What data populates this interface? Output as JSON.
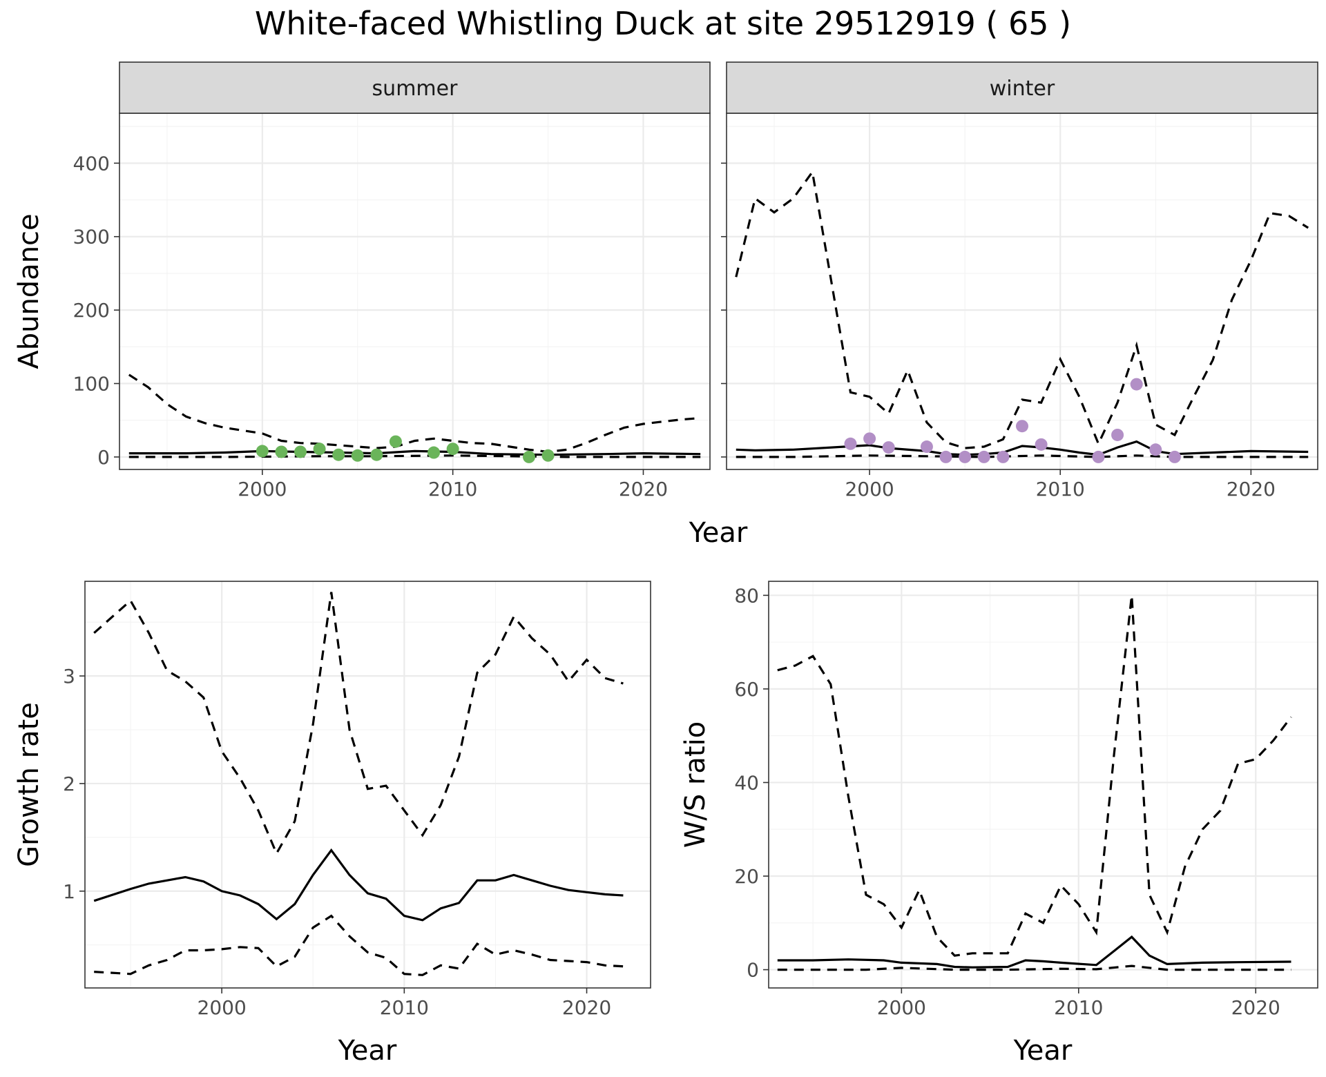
{
  "title": "White-faced Whistling Duck at site 29512919 ( 65 )",
  "chart_data": [
    {
      "type": "line",
      "panel": "abundance",
      "ylabel": "Abundance",
      "xlabel": "Year",
      "xlim": [
        1992.5,
        2023.5
      ],
      "ylim": [
        -17,
        468
      ],
      "xticks": [
        2000,
        2010,
        2020
      ],
      "yticks": [
        0,
        100,
        200,
        300,
        400
      ],
      "facets": [
        {
          "label": "summer",
          "point_color": "#6ab45a",
          "estimate": [
            [
              1993,
              5
            ],
            [
              1996,
              5
            ],
            [
              1998,
              6
            ],
            [
              2000,
              8
            ],
            [
              2002,
              7
            ],
            [
              2004,
              6
            ],
            [
              2006,
              5
            ],
            [
              2008,
              8
            ],
            [
              2010,
              7
            ],
            [
              2012,
              4
            ],
            [
              2015,
              3
            ],
            [
              2018,
              4
            ],
            [
              2020,
              5
            ],
            [
              2023,
              4
            ]
          ],
          "upper": [
            [
              1993,
              112
            ],
            [
              1994,
              95
            ],
            [
              1995,
              72
            ],
            [
              1996,
              55
            ],
            [
              1997,
              46
            ],
            [
              1998,
              40
            ],
            [
              2000,
              32
            ],
            [
              2001,
              22
            ],
            [
              2002,
              19
            ],
            [
              2003,
              18
            ],
            [
              2004,
              16
            ],
            [
              2005,
              14
            ],
            [
              2006,
              12
            ],
            [
              2007,
              14
            ],
            [
              2008,
              22
            ],
            [
              2009,
              25
            ],
            [
              2010,
              22
            ],
            [
              2011,
              19
            ],
            [
              2012,
              18
            ],
            [
              2013,
              14
            ],
            [
              2014,
              10
            ],
            [
              2015,
              7
            ],
            [
              2016,
              10
            ],
            [
              2017,
              19
            ],
            [
              2018,
              30
            ],
            [
              2019,
              40
            ],
            [
              2020,
              45
            ],
            [
              2021,
              48
            ],
            [
              2022,
              51
            ],
            [
              2023,
              53
            ]
          ],
          "lower": [
            [
              1993,
              0
            ],
            [
              1998,
              0
            ],
            [
              2003,
              1
            ],
            [
              2006,
              1
            ],
            [
              2010,
              2
            ],
            [
              2013,
              1
            ],
            [
              2016,
              0
            ],
            [
              2020,
              0
            ],
            [
              2023,
              0
            ]
          ],
          "observed": [
            [
              2000,
              8
            ],
            [
              2001,
              7
            ],
            [
              2002,
              7
            ],
            [
              2003,
              11
            ],
            [
              2004,
              3
            ],
            [
              2005,
              2
            ],
            [
              2006,
              3
            ],
            [
              2007,
              21
            ],
            [
              2009,
              6
            ],
            [
              2010,
              11
            ],
            [
              2014,
              0
            ],
            [
              2015,
              2
            ]
          ]
        },
        {
          "label": "winter",
          "point_color": "#b28fc6",
          "estimate": [
            [
              1993,
              10
            ],
            [
              1994,
              9
            ],
            [
              1996,
              10
            ],
            [
              1998,
              13
            ],
            [
              2000,
              16
            ],
            [
              2001,
              12
            ],
            [
              2003,
              8
            ],
            [
              2004,
              4
            ],
            [
              2005,
              3
            ],
            [
              2006,
              4
            ],
            [
              2007,
              6
            ],
            [
              2008,
              15
            ],
            [
              2009,
              13
            ],
            [
              2010,
              10
            ],
            [
              2011,
              6
            ],
            [
              2012,
              3
            ],
            [
              2013,
              13
            ],
            [
              2014,
              21
            ],
            [
              2015,
              8
            ],
            [
              2016,
              4
            ],
            [
              2018,
              6
            ],
            [
              2020,
              8
            ],
            [
              2023,
              7
            ]
          ],
          "upper": [
            [
              1993,
              245
            ],
            [
              1994,
              352
            ],
            [
              1995,
              333
            ],
            [
              1996,
              352
            ],
            [
              1997,
              388
            ],
            [
              1999,
              88
            ],
            [
              2000,
              82
            ],
            [
              2001,
              59
            ],
            [
              2002,
              118
            ],
            [
              2003,
              47
            ],
            [
              2004,
              20
            ],
            [
              2005,
              12
            ],
            [
              2006,
              14
            ],
            [
              2007,
              24
            ],
            [
              2008,
              78
            ],
            [
              2009,
              74
            ],
            [
              2010,
              133
            ],
            [
              2011,
              82
            ],
            [
              2012,
              18
            ],
            [
              2013,
              74
            ],
            [
              2014,
              152
            ],
            [
              2015,
              44
            ],
            [
              2016,
              30
            ],
            [
              2017,
              82
            ],
            [
              2018,
              132
            ],
            [
              2019,
              214
            ],
            [
              2020,
              268
            ],
            [
              2021,
              332
            ],
            [
              2022,
              328
            ],
            [
              2023,
              312
            ]
          ],
          "lower": [
            [
              1993,
              0
            ],
            [
              1996,
              0
            ],
            [
              2000,
              2
            ],
            [
              2003,
              1
            ],
            [
              2006,
              0
            ],
            [
              2009,
              2
            ],
            [
              2012,
              0
            ],
            [
              2014,
              2
            ],
            [
              2016,
              0
            ],
            [
              2020,
              0
            ],
            [
              2023,
              0
            ]
          ],
          "observed": [
            [
              1999,
              18
            ],
            [
              2000,
              25
            ],
            [
              2001,
              13
            ],
            [
              2003,
              14
            ],
            [
              2004,
              0
            ],
            [
              2005,
              0
            ],
            [
              2006,
              0
            ],
            [
              2007,
              0
            ],
            [
              2008,
              42
            ],
            [
              2009,
              17
            ],
            [
              2012,
              0
            ],
            [
              2013,
              30
            ],
            [
              2014,
              99
            ],
            [
              2015,
              10
            ],
            [
              2016,
              0
            ]
          ]
        }
      ]
    },
    {
      "type": "line",
      "panel": "growth",
      "ylabel": "Growth rate",
      "xlabel": "Year",
      "xlim": [
        1992.5,
        2023.5
      ],
      "ylim": [
        0.1,
        3.88
      ],
      "xticks": [
        2000,
        2010,
        2020
      ],
      "yticks": [
        1,
        2,
        3
      ],
      "estimate": [
        [
          1993,
          0.91
        ],
        [
          1995,
          1.02
        ],
        [
          1996,
          1.07
        ],
        [
          1998,
          1.13
        ],
        [
          1999,
          1.09
        ],
        [
          2000,
          1.0
        ],
        [
          2001,
          0.96
        ],
        [
          2002,
          0.88
        ],
        [
          2003,
          0.74
        ],
        [
          2004,
          0.88
        ],
        [
          2005,
          1.15
        ],
        [
          2006,
          1.38
        ],
        [
          2007,
          1.15
        ],
        [
          2008,
          0.98
        ],
        [
          2009,
          0.93
        ],
        [
          2010,
          0.77
        ],
        [
          2011,
          0.73
        ],
        [
          2012,
          0.84
        ],
        [
          2013,
          0.89
        ],
        [
          2014,
          1.1
        ],
        [
          2015,
          1.1
        ],
        [
          2016,
          1.15
        ],
        [
          2017,
          1.1
        ],
        [
          2018,
          1.05
        ],
        [
          2019,
          1.01
        ],
        [
          2020,
          0.99
        ],
        [
          2021,
          0.97
        ],
        [
          2022,
          0.96
        ]
      ],
      "upper": [
        [
          1993,
          3.4
        ],
        [
          1995,
          3.7
        ],
        [
          1996,
          3.4
        ],
        [
          1997,
          3.05
        ],
        [
          1998,
          2.95
        ],
        [
          1999,
          2.8
        ],
        [
          2000,
          2.3
        ],
        [
          2001,
          2.05
        ],
        [
          2002,
          1.75
        ],
        [
          2003,
          1.35
        ],
        [
          2004,
          1.65
        ],
        [
          2005,
          2.55
        ],
        [
          2006,
          3.78
        ],
        [
          2007,
          2.5
        ],
        [
          2008,
          1.95
        ],
        [
          2009,
          1.98
        ],
        [
          2010,
          1.75
        ],
        [
          2011,
          1.52
        ],
        [
          2012,
          1.8
        ],
        [
          2013,
          2.25
        ],
        [
          2014,
          3.03
        ],
        [
          2015,
          3.2
        ],
        [
          2016,
          3.55
        ],
        [
          2017,
          3.35
        ],
        [
          2018,
          3.2
        ],
        [
          2019,
          2.95
        ],
        [
          2020,
          3.15
        ],
        [
          2021,
          2.98
        ],
        [
          2022,
          2.93
        ]
      ],
      "lower": [
        [
          1993,
          0.25
        ],
        [
          1995,
          0.23
        ],
        [
          1996,
          0.31
        ],
        [
          1997,
          0.36
        ],
        [
          1998,
          0.45
        ],
        [
          1999,
          0.45
        ],
        [
          2000,
          0.46
        ],
        [
          2001,
          0.48
        ],
        [
          2002,
          0.47
        ],
        [
          2003,
          0.3
        ],
        [
          2004,
          0.39
        ],
        [
          2005,
          0.66
        ],
        [
          2006,
          0.77
        ],
        [
          2007,
          0.58
        ],
        [
          2008,
          0.43
        ],
        [
          2009,
          0.38
        ],
        [
          2010,
          0.23
        ],
        [
          2011,
          0.22
        ],
        [
          2012,
          0.31
        ],
        [
          2013,
          0.28
        ],
        [
          2014,
          0.51
        ],
        [
          2015,
          0.41
        ],
        [
          2016,
          0.45
        ],
        [
          2017,
          0.41
        ],
        [
          2018,
          0.36
        ],
        [
          2019,
          0.35
        ],
        [
          2020,
          0.34
        ],
        [
          2021,
          0.31
        ],
        [
          2022,
          0.3
        ]
      ]
    },
    {
      "type": "line",
      "panel": "ratio",
      "ylabel": "W/S ratio",
      "xlabel": "Year",
      "xlim": [
        1992.5,
        2023.5
      ],
      "ylim": [
        -3.9,
        83
      ],
      "xticks": [
        2000,
        2010,
        2020
      ],
      "yticks": [
        0,
        20,
        40,
        60,
        80
      ],
      "estimate": [
        [
          1993,
          2
        ],
        [
          1995,
          2
        ],
        [
          1997,
          2.2
        ],
        [
          1999,
          2
        ],
        [
          2000,
          1.5
        ],
        [
          2002,
          1.2
        ],
        [
          2003,
          0.6
        ],
        [
          2004,
          0.5
        ],
        [
          2006,
          0.6
        ],
        [
          2007,
          2
        ],
        [
          2008,
          1.8
        ],
        [
          2009,
          1.5
        ],
        [
          2011,
          1
        ],
        [
          2012,
          4
        ],
        [
          2013,
          7
        ],
        [
          2014,
          3
        ],
        [
          2015,
          1.2
        ],
        [
          2017,
          1.5
        ],
        [
          2019,
          1.6
        ],
        [
          2022,
          1.7
        ]
      ],
      "upper": [
        [
          1993,
          64
        ],
        [
          1994,
          65
        ],
        [
          1995,
          67
        ],
        [
          1996,
          61
        ],
        [
          1997,
          37
        ],
        [
          1998,
          16
        ],
        [
          1999,
          14
        ],
        [
          2000,
          9
        ],
        [
          2001,
          17
        ],
        [
          2002,
          7
        ],
        [
          2003,
          3
        ],
        [
          2004,
          3.5
        ],
        [
          2005,
          3.5
        ],
        [
          2006,
          3.5
        ],
        [
          2007,
          12
        ],
        [
          2008,
          10
        ],
        [
          2009,
          18
        ],
        [
          2010,
          14
        ],
        [
          2011,
          8
        ],
        [
          2012,
          46
        ],
        [
          2013,
          80
        ],
        [
          2014,
          16
        ],
        [
          2015,
          8
        ],
        [
          2016,
          22
        ],
        [
          2017,
          30
        ],
        [
          2018,
          34
        ],
        [
          2019,
          44
        ],
        [
          2020,
          45
        ],
        [
          2021,
          49
        ],
        [
          2022,
          54
        ]
      ],
      "lower": [
        [
          1993,
          0
        ],
        [
          1998,
          0
        ],
        [
          2000,
          0.4
        ],
        [
          2003,
          0
        ],
        [
          2006,
          0
        ],
        [
          2009,
          0.2
        ],
        [
          2011,
          0.1
        ],
        [
          2013,
          0.8
        ],
        [
          2015,
          0
        ],
        [
          2018,
          0
        ],
        [
          2022,
          0
        ]
      ]
    }
  ]
}
